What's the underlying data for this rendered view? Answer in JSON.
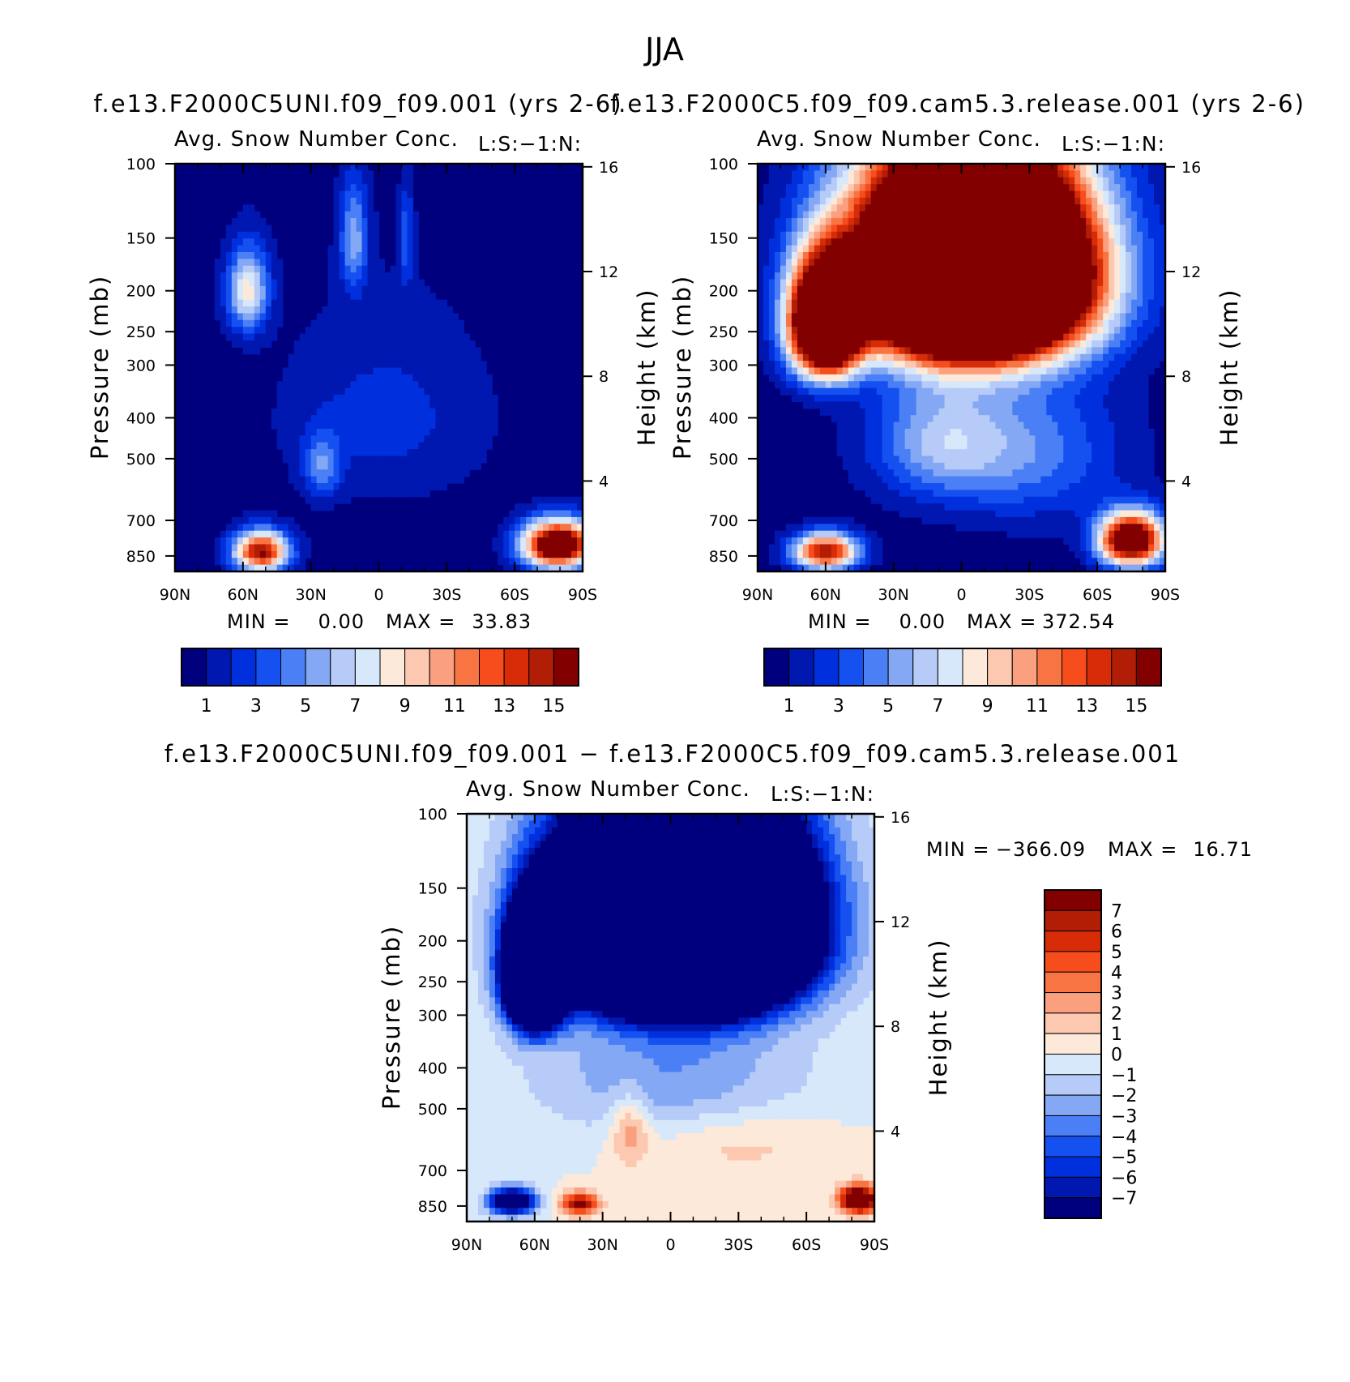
{
  "figure_title": "JJA",
  "colors": {
    "seq": [
      "#00007f",
      "#0017b0",
      "#0030dd",
      "#1550f0",
      "#4a7ff5",
      "#85a8f5",
      "#b6cbf8",
      "#d8e8fb",
      "#fde9d9",
      "#fcc8b0",
      "#fba07f",
      "#f97443",
      "#f74c1c",
      "#d82c08",
      "#b21d05",
      "#820000"
    ],
    "diff": [
      "#00007f",
      "#0017b0",
      "#0030dd",
      "#1550f0",
      "#4a7ff5",
      "#85a8f5",
      "#b6cbf8",
      "#d8e8fb",
      "#fde9d9",
      "#fcc8b0",
      "#fba07f",
      "#f97443",
      "#f74c1c",
      "#d82c08",
      "#b21d05",
      "#820000"
    ]
  },
  "chart_data": [
    {
      "id": "panel-a",
      "type": "heatmap",
      "title": "f.e13.F2000C5UNI.f09_f09.001 (yrs 2-6)",
      "subtitle": "Avg. Snow Number Conc.",
      "subtitle_right": "L:S:−1:N:",
      "ylabel": "Pressure (mb)",
      "ylabel_right": "Height (km)",
      "xticks": [
        "90N",
        "60N",
        "30N",
        "0",
        "30S",
        "60S",
        "90S"
      ],
      "yticks": [
        100,
        150,
        200,
        250,
        300,
        400,
        500,
        700,
        850
      ],
      "yticks_right": [
        16,
        12,
        8,
        4
      ],
      "min_label": "MIN =",
      "min_value": "0.00",
      "max_label": "MAX =",
      "max_value": "33.83",
      "colorbar_labels": [
        "1",
        "3",
        "5",
        "7",
        "9",
        "11",
        "13",
        "15"
      ],
      "blobs": [
        {
          "lat": -79,
          "p": 800,
          "amp": 20,
          "wl": 15,
          "wp": 100
        },
        {
          "lat": 52,
          "p": 830,
          "amp": 15,
          "wl": 12,
          "wp": 90
        },
        {
          "lat": 11,
          "p": 150,
          "amp": 5,
          "wl": 6,
          "wp": 45
        },
        {
          "lat": -12,
          "p": 150,
          "amp": 3,
          "wl": 3,
          "wp": 40
        },
        {
          "lat": 58,
          "p": 200,
          "amp": 8,
          "wl": 9,
          "wp": 45
        },
        {
          "lat": -3,
          "p": 400,
          "amp": 2,
          "wl": 45,
          "wp": 200
        },
        {
          "lat": 25,
          "p": 520,
          "amp": 4,
          "wl": 8,
          "wp": 90
        }
      ]
    },
    {
      "id": "panel-b",
      "type": "heatmap",
      "title": "f.e13.F2000C5.f09_f09.cam5.3.release.001 (yrs 2-6)",
      "subtitle": "Avg. Snow Number Conc.",
      "subtitle_right": "L:S:−1:N:",
      "ylabel": "Pressure (mb)",
      "ylabel_right": "Height (km)",
      "xticks": [
        "90N",
        "60N",
        "30N",
        "0",
        "30S",
        "60S",
        "90S"
      ],
      "yticks": [
        100,
        150,
        200,
        250,
        300,
        400,
        500,
        700,
        850
      ],
      "yticks_right": [
        16,
        12,
        8,
        4
      ],
      "min_label": "MIN =",
      "min_value": "0.00",
      "max_label": "MAX =",
      "max_value": "372.54",
      "colorbar_labels": [
        "1",
        "3",
        "5",
        "7",
        "9",
        "11",
        "13",
        "15"
      ],
      "blobs": [
        {
          "lat": -5,
          "p": 180,
          "amp": 60,
          "wl": 45,
          "wp": 90
        },
        {
          "lat": 60,
          "p": 240,
          "amp": 30,
          "wl": 15,
          "wp": 70
        },
        {
          "lat": -75,
          "p": 780,
          "amp": 20,
          "wl": 14,
          "wp": 110
        },
        {
          "lat": 60,
          "p": 830,
          "amp": 15,
          "wl": 14,
          "wp": 80
        },
        {
          "lat": 10,
          "p": 450,
          "amp": 5,
          "wl": 30,
          "wp": 150
        },
        {
          "lat": -30,
          "p": 480,
          "amp": 4,
          "wl": 40,
          "wp": 200
        }
      ]
    },
    {
      "id": "panel-c",
      "type": "heatmap",
      "title": "f.e13.F2000C5UNI.f09_f09.001 − f.e13.F2000C5.f09_f09.cam5.3.release.001",
      "subtitle": "Avg. Snow Number Conc.",
      "subtitle_right": "L:S:−1:N:",
      "ylabel": "Pressure (mb)",
      "ylabel_right": "Height (km)",
      "xticks": [
        "90N",
        "60N",
        "30N",
        "0",
        "30S",
        "60S",
        "90S"
      ],
      "yticks": [
        100,
        150,
        200,
        250,
        300,
        400,
        500,
        700,
        850
      ],
      "yticks_right": [
        16,
        12,
        8,
        4
      ],
      "min_label": "MIN =",
      "min_value": "−366.09",
      "max_label": "MAX =",
      "max_value": "16.71",
      "colorbar_labels": [
        "7",
        "6",
        "5",
        "4",
        "3",
        "2",
        "1",
        "0",
        "−1",
        "−2",
        "−3",
        "−4",
        "−5",
        "−6",
        "−7"
      ],
      "blobs": [
        {
          "lat": -5,
          "p": 180,
          "amp": -60,
          "wl": 45,
          "wp": 90
        },
        {
          "lat": 60,
          "p": 240,
          "amp": -30,
          "wl": 12,
          "wp": 70
        },
        {
          "lat": -83,
          "p": 820,
          "amp": 12,
          "wl": 8,
          "wp": 60
        },
        {
          "lat": 40,
          "p": 840,
          "amp": 8,
          "wl": 8,
          "wp": 50
        },
        {
          "lat": 18,
          "p": 560,
          "amp": 3,
          "wl": 8,
          "wp": 110
        },
        {
          "lat": -30,
          "p": 600,
          "amp": 1.5,
          "wl": 40,
          "wp": 120
        },
        {
          "lat": 70,
          "p": 830,
          "amp": -12,
          "wl": 10,
          "wp": 60
        },
        {
          "lat": 0,
          "p": 420,
          "amp": -3,
          "wl": 60,
          "wp": 150
        }
      ]
    }
  ]
}
